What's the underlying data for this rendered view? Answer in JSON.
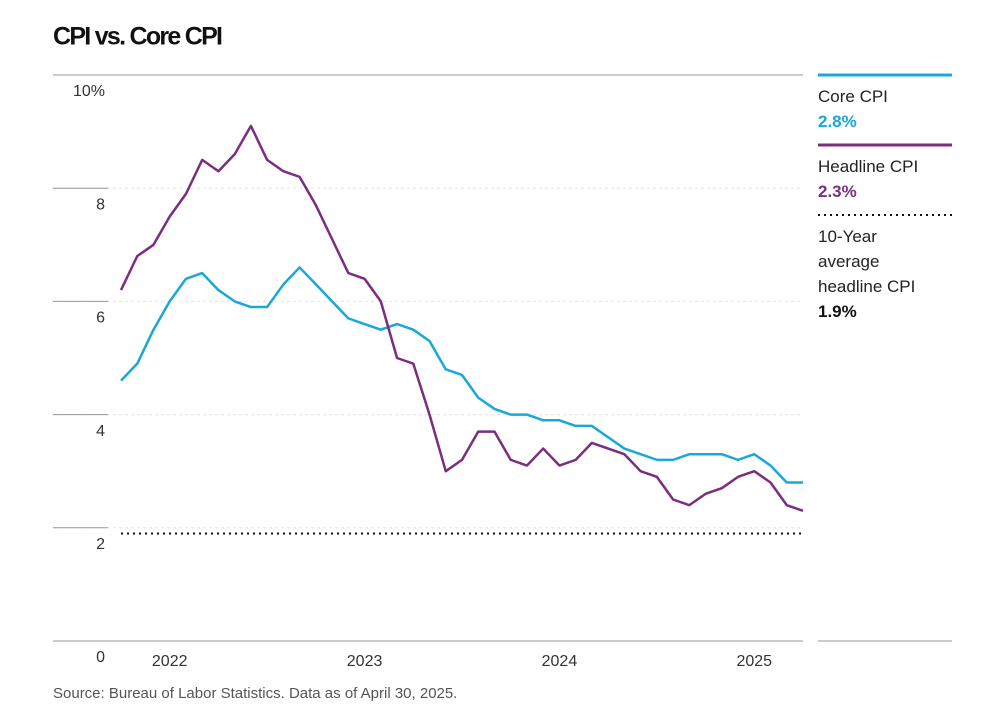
{
  "chart_data": {
    "type": "line",
    "title": "CPI vs. Core CPI",
    "source": "Source: Bureau of Labor Statistics. Data as of April 30, 2025.",
    "categories": [
      null,
      null,
      null,
      "2022",
      null,
      null,
      null,
      null,
      null,
      null,
      null,
      null,
      null,
      null,
      null,
      "2023",
      null,
      null,
      null,
      null,
      null,
      null,
      null,
      null,
      null,
      null,
      null,
      "2024",
      null,
      null,
      null,
      null,
      null,
      null,
      null,
      null,
      null,
      null,
      null,
      "2025",
      null,
      null,
      null
    ],
    "series": [
      {
        "name": "Core CPI",
        "color": "#1aa7d9",
        "latest_label": "2.8%",
        "values": [
          4.6,
          4.9,
          5.5,
          6.0,
          6.4,
          6.5,
          6.2,
          6.0,
          5.9,
          5.9,
          6.3,
          6.6,
          6.3,
          6.0,
          5.7,
          5.6,
          5.5,
          5.6,
          5.5,
          5.3,
          4.8,
          4.7,
          4.3,
          4.1,
          4.0,
          4.0,
          3.9,
          3.9,
          3.8,
          3.8,
          3.6,
          3.4,
          3.3,
          3.2,
          3.2,
          3.3,
          3.3,
          3.3,
          3.2,
          3.3,
          3.1,
          2.8,
          2.8
        ]
      },
      {
        "name": "Headline CPI",
        "color": "#7b2d7e",
        "latest_label": "2.3%",
        "values": [
          6.2,
          6.8,
          7.0,
          7.5,
          7.9,
          8.5,
          8.3,
          8.6,
          9.1,
          8.5,
          8.3,
          8.2,
          7.7,
          7.1,
          6.5,
          6.4,
          6.0,
          5.0,
          4.9,
          4.0,
          3.0,
          3.2,
          3.7,
          3.7,
          3.2,
          3.1,
          3.4,
          3.1,
          3.2,
          3.5,
          3.4,
          3.3,
          3.0,
          2.9,
          2.5,
          2.4,
          2.6,
          2.7,
          2.9,
          3.0,
          2.8,
          2.4,
          2.3
        ]
      }
    ],
    "reference_line": {
      "name": "10-Year average headline CPI",
      "value": 1.9,
      "label": "1.9%",
      "color": "#111"
    },
    "ylim": [
      0,
      10
    ],
    "yticks": [
      0,
      2,
      4,
      6,
      8,
      {
        "value": 10,
        "label": "10%"
      }
    ],
    "grid": true
  }
}
